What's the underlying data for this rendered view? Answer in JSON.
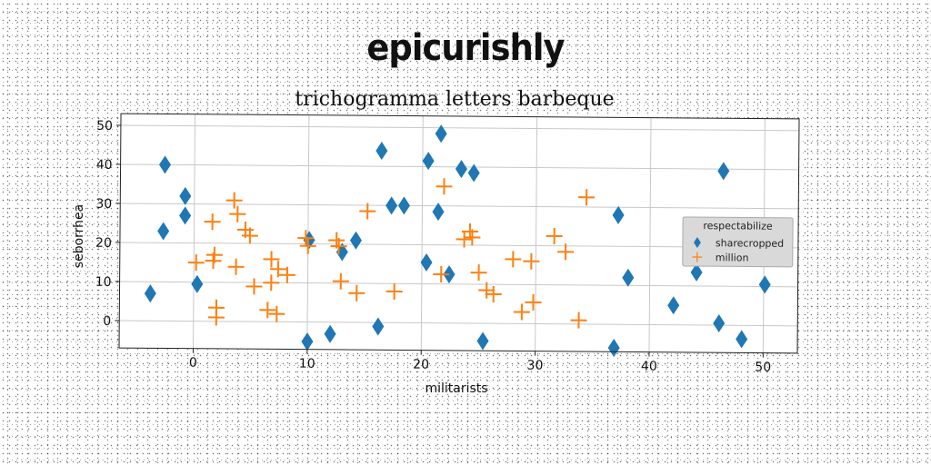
{
  "figure": {
    "suptitle": "epicurishly"
  },
  "chart_data": {
    "type": "scatter",
    "title": "trichogramma letters barbeque",
    "xlabel": "militarists",
    "ylabel": "seborrhea",
    "xlim": [
      -6.5,
      53
    ],
    "ylim": [
      -7,
      53
    ],
    "xticks": [
      0,
      10,
      20,
      30,
      40,
      50
    ],
    "yticks": [
      0,
      10,
      20,
      30,
      40,
      50
    ],
    "grid": true,
    "legend": {
      "title": "respectabilize",
      "placement": "right"
    },
    "series": [
      {
        "name": "sharecropped",
        "marker": "diamond",
        "color": "#1f77b4",
        "points": [
          [
            -3.8,
            7
          ],
          [
            -2.7,
            23
          ],
          [
            -2.6,
            40
          ],
          [
            -0.8,
            32
          ],
          [
            -0.8,
            27
          ],
          [
            0.3,
            9.5
          ],
          [
            10,
            -5
          ],
          [
            10.1,
            21
          ],
          [
            12,
            -3
          ],
          [
            13,
            18
          ],
          [
            14.2,
            21
          ],
          [
            16.2,
            -1
          ],
          [
            16.4,
            44
          ],
          [
            17.3,
            30
          ],
          [
            18.4,
            30
          ],
          [
            20.4,
            15.5
          ],
          [
            20.5,
            41.5
          ],
          [
            21.4,
            28.5
          ],
          [
            21.6,
            48.5
          ],
          [
            22.4,
            12.5
          ],
          [
            23.4,
            39.5
          ],
          [
            24.5,
            38.5
          ],
          [
            25.4,
            -4.5
          ],
          [
            36.9,
            -6
          ],
          [
            37.2,
            28
          ],
          [
            38.1,
            12
          ],
          [
            42.1,
            5
          ],
          [
            44.1,
            13.5
          ],
          [
            46.1,
            0.5
          ],
          [
            46.4,
            39.5
          ],
          [
            48.1,
            -3.5
          ],
          [
            50.1,
            10.5
          ]
        ]
      },
      {
        "name": "million",
        "marker": "plus",
        "color": "#ff7f0e",
        "points": [
          [
            0.2,
            15
          ],
          [
            1.6,
            25.5
          ],
          [
            1.8,
            17
          ],
          [
            1.7,
            15.5
          ],
          [
            2,
            3.5
          ],
          [
            2,
            1
          ],
          [
            3.5,
            31
          ],
          [
            3.8,
            27.5
          ],
          [
            4.5,
            23.5
          ],
          [
            4.9,
            22
          ],
          [
            5.3,
            9
          ],
          [
            3.7,
            14
          ],
          [
            6.5,
            3
          ],
          [
            7.3,
            2
          ],
          [
            6.8,
            16
          ],
          [
            6.8,
            10
          ],
          [
            7.4,
            13.5
          ],
          [
            8.2,
            12
          ],
          [
            9.8,
            21.5
          ],
          [
            10,
            19.5
          ],
          [
            12.5,
            21
          ],
          [
            12.7,
            19.5
          ],
          [
            12.9,
            10.5
          ],
          [
            14.3,
            7.5
          ],
          [
            15.2,
            28.5
          ],
          [
            17.6,
            8
          ],
          [
            21.7,
            12.5
          ],
          [
            21.9,
            35
          ],
          [
            23.7,
            21.5
          ],
          [
            24.2,
            23.5
          ],
          [
            24.4,
            22
          ],
          [
            25,
            13
          ],
          [
            25.7,
            8.5
          ],
          [
            26.3,
            7.5
          ],
          [
            28,
            16.5
          ],
          [
            28.8,
            3
          ],
          [
            29.6,
            16
          ],
          [
            29.8,
            5.5
          ],
          [
            31.6,
            22.5
          ],
          [
            32.6,
            18.5
          ],
          [
            33.8,
            1
          ],
          [
            34.4,
            32.5
          ]
        ]
      }
    ]
  }
}
